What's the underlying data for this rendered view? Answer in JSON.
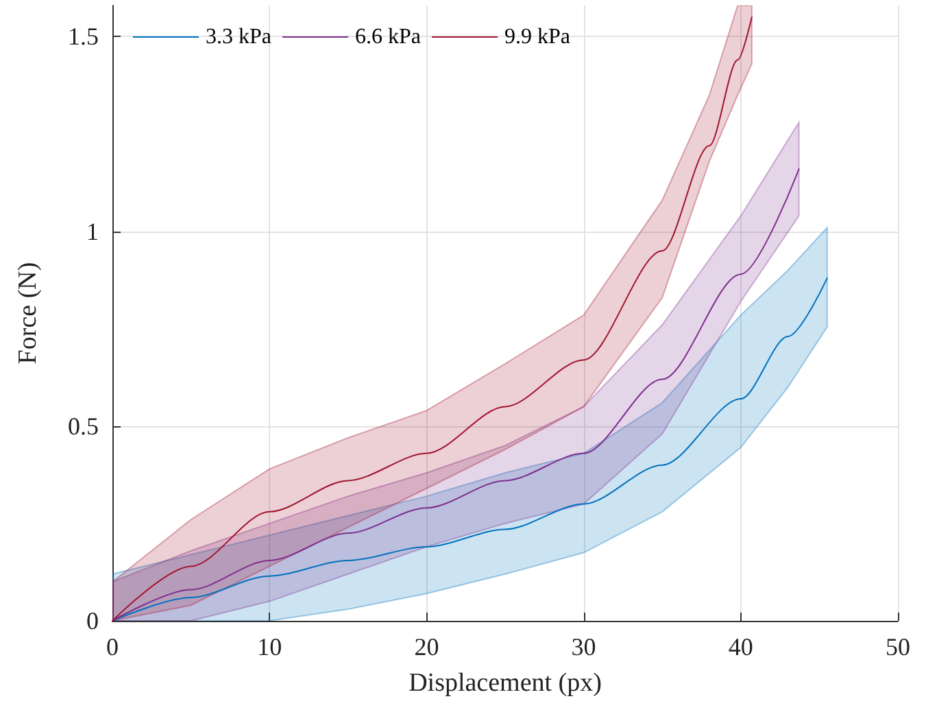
{
  "chart_data": {
    "type": "line",
    "xlabel": "Displacement (px)",
    "ylabel": "Force (N)",
    "xlim": [
      0,
      50
    ],
    "xticks": [
      0,
      10,
      20,
      30,
      40,
      50
    ],
    "ylim": [
      0,
      1.58
    ],
    "yticks": [
      0,
      0.5,
      1,
      1.5
    ],
    "grid": true,
    "legend": "top left",
    "marker": "none",
    "line_style": "solid",
    "series": [
      {
        "name": "3.3 kPa",
        "color": "#0072bd",
        "x": [
          0,
          5,
          10,
          15,
          20,
          25,
          30,
          35,
          40,
          43,
          45.5
        ],
        "values": [
          0,
          0.06,
          0.115,
          0.155,
          0.19,
          0.235,
          0.3,
          0.4,
          0.57,
          0.73,
          0.88
        ],
        "upper": [
          0.12,
          0.17,
          0.22,
          0.27,
          0.32,
          0.38,
          0.43,
          0.56,
          0.785,
          0.9,
          1.01
        ],
        "lower": [
          0,
          0,
          0,
          0.03,
          0.07,
          0.12,
          0.175,
          0.28,
          0.445,
          0.6,
          0.755
        ]
      },
      {
        "name": "6.6 kPa",
        "color": "#7e2f8e",
        "x": [
          0,
          5,
          10,
          15,
          20,
          25,
          30,
          35,
          40,
          43.7
        ],
        "values": [
          0,
          0.08,
          0.155,
          0.225,
          0.29,
          0.36,
          0.43,
          0.62,
          0.89,
          1.16
        ],
        "upper": [
          0.1,
          0.18,
          0.25,
          0.32,
          0.38,
          0.45,
          0.55,
          0.76,
          1.04,
          1.28
        ],
        "lower": [
          0,
          0,
          0.05,
          0.12,
          0.19,
          0.25,
          0.3,
          0.48,
          0.82,
          1.04
        ]
      },
      {
        "name": "9.9 kPa",
        "color": "#a2142f",
        "x": [
          0,
          5,
          10,
          15,
          20,
          25,
          30,
          35,
          38,
          39.8,
          40.7
        ],
        "values": [
          0,
          0.14,
          0.28,
          0.36,
          0.43,
          0.55,
          0.67,
          0.95,
          1.22,
          1.44,
          1.55
        ],
        "upper": [
          0.1,
          0.26,
          0.39,
          0.47,
          0.54,
          0.66,
          0.785,
          1.08,
          1.35,
          1.58,
          1.58
        ],
        "lower": [
          0,
          0.04,
          0.14,
          0.24,
          0.34,
          0.44,
          0.55,
          0.83,
          1.18,
          1.35,
          1.43
        ]
      }
    ]
  }
}
